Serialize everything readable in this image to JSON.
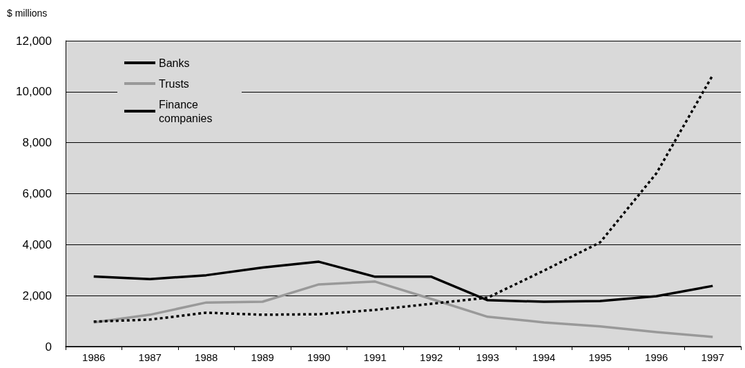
{
  "chart_data": {
    "type": "line",
    "ylabel": "$ millions",
    "categories": [
      "1986",
      "1987",
      "1988",
      "1989",
      "1990",
      "1991",
      "1992",
      "1993",
      "1994",
      "1995",
      "1996",
      "1997"
    ],
    "series": [
      {
        "name": "Banks",
        "color": "#000000",
        "line_style": "solid",
        "values": [
          2750,
          2650,
          2800,
          3100,
          3330,
          2740,
          2740,
          1820,
          1760,
          1790,
          1980,
          2380
        ]
      },
      {
        "name": "Trusts",
        "color": "#999999",
        "line_style": "solid",
        "values": [
          950,
          1250,
          1730,
          1760,
          2440,
          2550,
          1870,
          1170,
          950,
          790,
          570,
          380
        ]
      },
      {
        "name": "Finance companies",
        "color": "#000000",
        "line_style": "dashed",
        "values": [
          980,
          1060,
          1330,
          1250,
          1270,
          1440,
          1680,
          1920,
          2980,
          4090,
          6800,
          10650
        ]
      }
    ],
    "ylim": [
      0,
      12000
    ],
    "yticks": [
      0,
      {
        "value": 2000,
        "label": "2,000"
      },
      {
        "value": 4000,
        "label": "4,000"
      },
      {
        "value": 6000,
        "label": "6,000"
      },
      {
        "value": 8000,
        "label": "8,000"
      },
      {
        "value": 10000,
        "label": "10,000"
      },
      {
        "value": 12000,
        "label": "12,000"
      }
    ],
    "grid": "y",
    "legend": "top left",
    "marker": "none"
  }
}
